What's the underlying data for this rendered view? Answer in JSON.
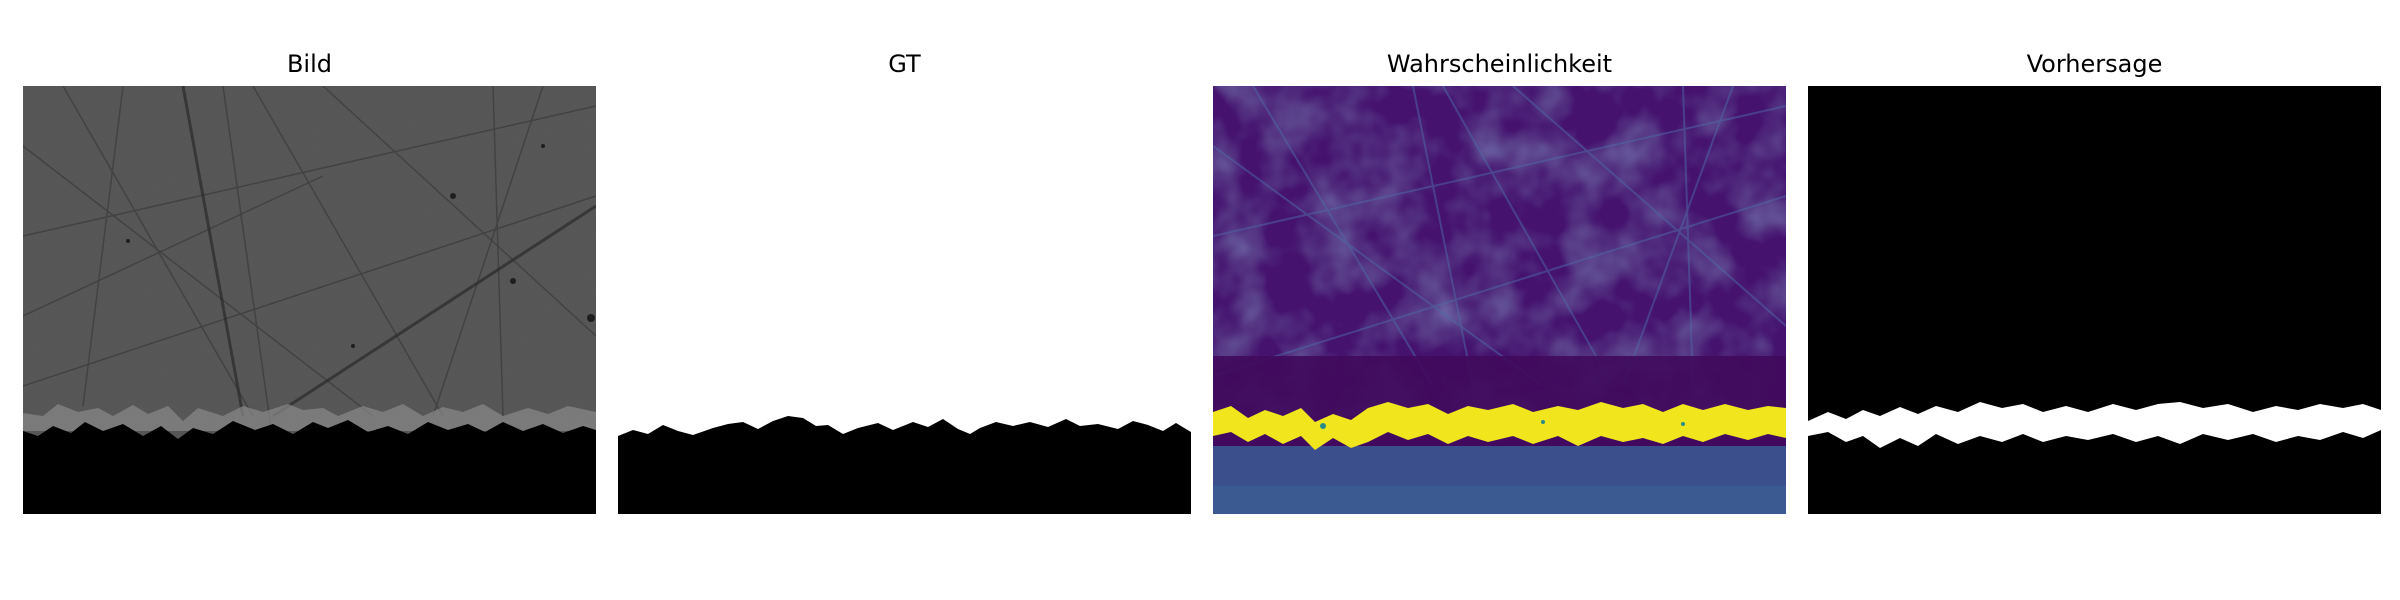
{
  "panels": [
    {
      "title": "Bild"
    },
    {
      "title": "GT"
    },
    {
      "title": "Wahrscheinlichkeit"
    },
    {
      "title": "Vorhersage"
    }
  ]
}
